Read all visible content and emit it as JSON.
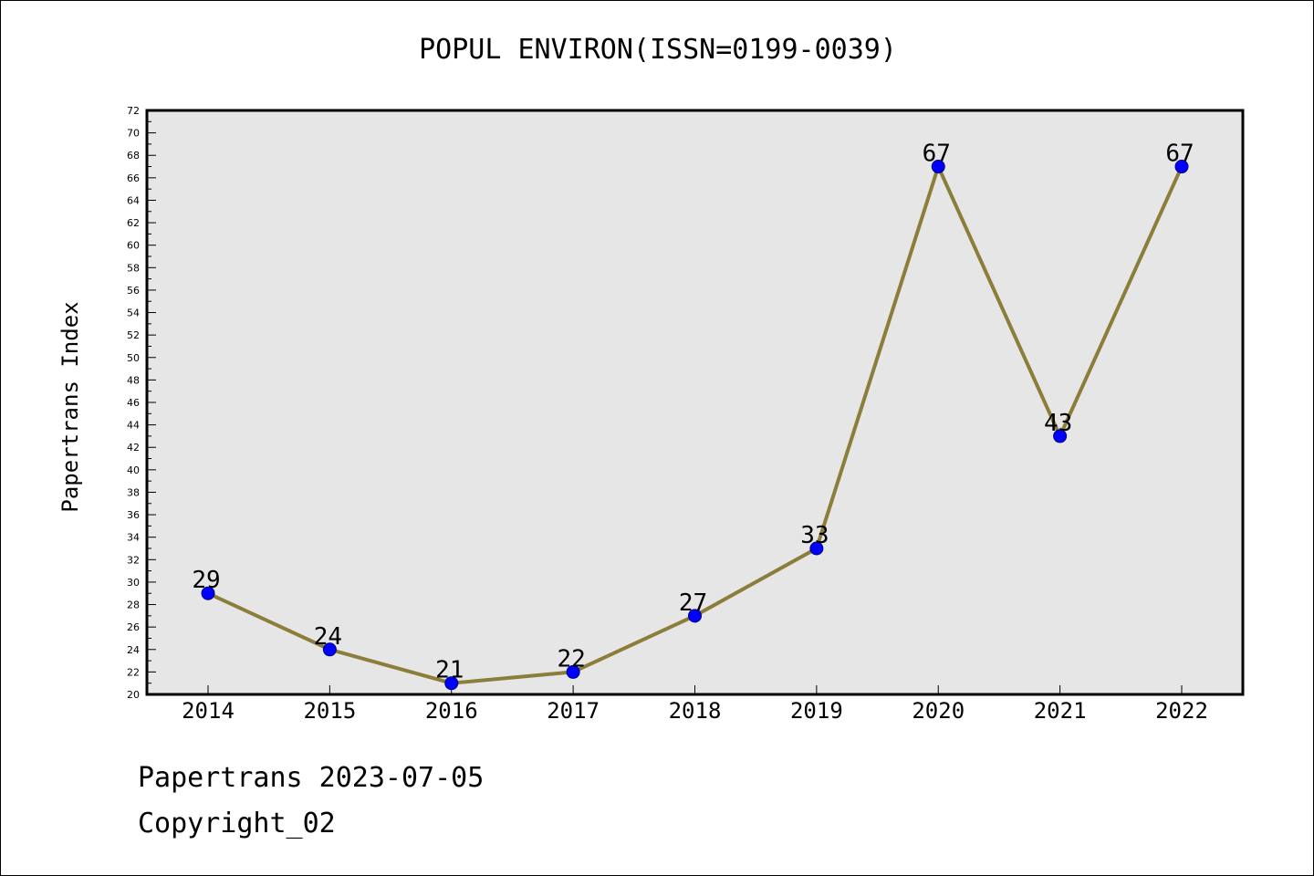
{
  "chart_data": {
    "type": "line",
    "title": "POPUL ENVIRON(ISSN=0199-0039)",
    "ylabel": "Papertrans Index",
    "xlabel": "",
    "categories": [
      "2014",
      "2015",
      "2016",
      "2017",
      "2018",
      "2019",
      "2020",
      "2021",
      "2022"
    ],
    "values": [
      29,
      24,
      21,
      22,
      27,
      33,
      67,
      43,
      67
    ],
    "data_labels": [
      "29",
      "24",
      "21",
      "22",
      "27",
      "33",
      "67",
      "43",
      "67"
    ],
    "ylim": [
      20,
      72
    ],
    "y_major_step": 2,
    "y_minor_step": 1,
    "grid": false,
    "legend": "none",
    "colors": {
      "line": "#8b7d3a",
      "marker": "#0000ff",
      "marker_edge": "#000080",
      "plot_background": "#e6e6e6",
      "axes": "#000000"
    }
  },
  "footer": {
    "date_text": "Papertrans 2023-07-05",
    "copyright_text": "Copyright_02"
  }
}
